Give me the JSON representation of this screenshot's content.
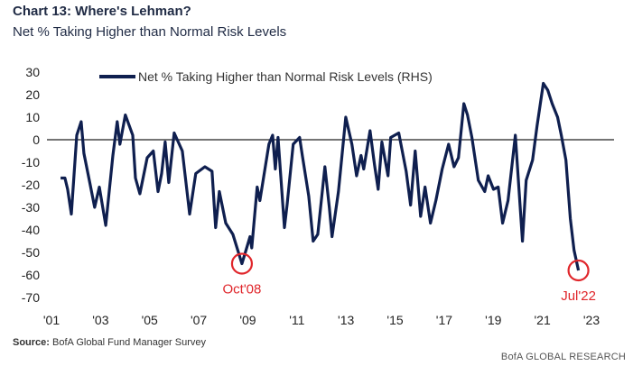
{
  "title": "Chart 13: Where's Lehman?",
  "subtitle": "Net % Taking Higher than Normal Risk Levels",
  "source_label": "Source:",
  "source_text": "BofA Global Fund Manager Survey",
  "brand": "BofA GLOBAL RESEARCH",
  "colors": {
    "line": "#0f1f4f",
    "annotation": "#e0262b",
    "text": "#1f2a44"
  },
  "chart_data": {
    "type": "line",
    "title": "Chart 13: Where's Lehman?",
    "subtitle": "Net % Taking Higher than Normal Risk Levels",
    "xlabel": "",
    "ylabel": "",
    "xlim": [
      2001,
      2023
    ],
    "ylim": [
      -70,
      30
    ],
    "yticks": [
      30,
      20,
      10,
      0,
      -10,
      -20,
      -30,
      -40,
      -50,
      -60,
      -70
    ],
    "xticks": [
      {
        "v": 2001,
        "label": "'01"
      },
      {
        "v": 2003,
        "label": "'03"
      },
      {
        "v": 2005,
        "label": "'05"
      },
      {
        "v": 2007,
        "label": "'07"
      },
      {
        "v": 2009,
        "label": "'09"
      },
      {
        "v": 2011,
        "label": "'11"
      },
      {
        "v": 2013,
        "label": "'13"
      },
      {
        "v": 2015,
        "label": "'15"
      },
      {
        "v": 2017,
        "label": "'17"
      },
      {
        "v": 2019,
        "label": "'19"
      },
      {
        "v": 2021,
        "label": "'21"
      },
      {
        "v": 2023,
        "label": "'23"
      }
    ],
    "legend": {
      "position": "top-left",
      "entries": [
        "Net % Taking Higher than Normal Risk Levels (RHS)"
      ]
    },
    "reference_line": 0,
    "annotations": [
      {
        "label": "Oct'08",
        "x": 2008.76,
        "y": -55
      },
      {
        "label": "Jul'22",
        "x": 2022.47,
        "y": -58
      }
    ],
    "series": [
      {
        "name": "Net % Taking Higher than Normal Risk Levels (RHS)",
        "x": [
          2001.37,
          2001.55,
          2001.66,
          2001.81,
          2002.03,
          2002.21,
          2002.32,
          2002.58,
          2002.76,
          2002.95,
          2003.21,
          2003.5,
          2003.68,
          2003.79,
          2004.01,
          2004.31,
          2004.42,
          2004.6,
          2004.9,
          2005.15,
          2005.34,
          2005.49,
          2005.63,
          2005.78,
          2006.0,
          2006.33,
          2006.63,
          2006.88,
          2007.25,
          2007.54,
          2007.69,
          2007.84,
          2008.1,
          2008.39,
          2008.76,
          2008.9,
          2009.09,
          2009.16,
          2009.38,
          2009.49,
          2009.86,
          2010.01,
          2010.12,
          2010.23,
          2010.49,
          2010.6,
          2010.85,
          2011.11,
          2011.22,
          2011.48,
          2011.66,
          2011.85,
          2012.14,
          2012.32,
          2012.43,
          2012.69,
          2012.99,
          2013.24,
          2013.43,
          2013.61,
          2013.72,
          2013.98,
          2014.16,
          2014.31,
          2014.46,
          2014.71,
          2014.82,
          2015.15,
          2015.45,
          2015.63,
          2015.82,
          2016.04,
          2016.22,
          2016.44,
          2016.66,
          2016.92,
          2017.18,
          2017.4,
          2017.58,
          2017.8,
          2017.95,
          2018.13,
          2018.39,
          2018.65,
          2018.79,
          2019.01,
          2019.2,
          2019.38,
          2019.6,
          2019.9,
          2020.19,
          2020.34,
          2020.6,
          2020.78,
          2021.04,
          2021.22,
          2021.4,
          2021.62,
          2021.77,
          2021.96,
          2022.14,
          2022.29,
          2022.47
        ],
        "y": [
          -17,
          -17,
          -22,
          -33,
          2,
          8,
          -6,
          -20,
          -30,
          -21,
          -38,
          -7,
          8,
          -2,
          11,
          2,
          -17,
          -24,
          -8,
          -5,
          -23,
          -15,
          -1,
          -19,
          3,
          -5,
          -33,
          -15,
          -12,
          -14,
          -39,
          -23,
          -37,
          -42,
          -55,
          -50,
          -43,
          -48,
          -21,
          -27,
          -2,
          2,
          -13,
          1,
          -39,
          -29,
          -2,
          1,
          -7,
          -25,
          -45,
          -42,
          -12,
          -30,
          -43,
          -23,
          10,
          -2,
          -16,
          -7,
          -13,
          4,
          -11,
          -22,
          -1,
          -16,
          1,
          3,
          -14,
          -29,
          -5,
          -34,
          -21,
          -37,
          -27,
          -13,
          -2,
          -12,
          -8,
          16,
          11,
          1,
          -18,
          -23,
          -16,
          -22,
          -21,
          -37,
          -27,
          2,
          -45,
          -18,
          -9,
          6,
          25,
          22,
          16,
          10,
          2,
          -9,
          -35,
          -49,
          -58
        ]
      }
    ]
  }
}
